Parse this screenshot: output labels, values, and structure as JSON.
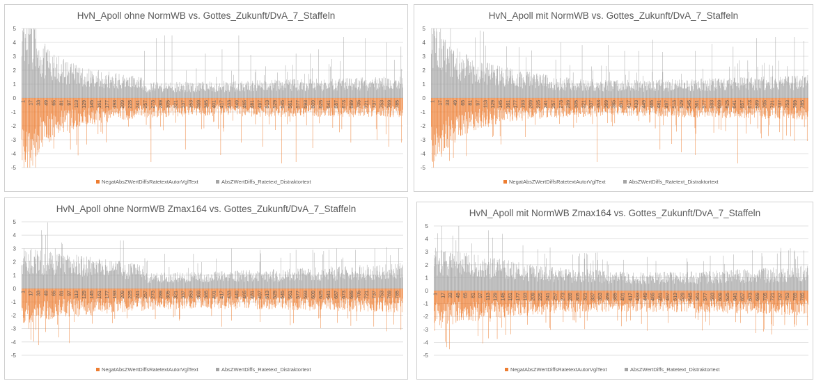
{
  "colors": {
    "neg": "#ED7D31",
    "pos": "#A5A5A5",
    "grid": "#D9D9D9",
    "text": "#595959"
  },
  "chart_data": [
    {
      "type": "bar",
      "title": "HvN_Apoll ohne NormWB vs. Gottes_Zukunft/DvA_7_Staffeln",
      "ylim": [
        -5,
        5
      ],
      "yticks": [
        5,
        4,
        3,
        2,
        1,
        0,
        -1,
        -2,
        -3,
        -4,
        -5
      ],
      "xticks": [
        "1",
        "17",
        "33",
        "49",
        "65",
        "81",
        "97",
        "113",
        "129",
        "145",
        "161",
        "177",
        "193",
        "209",
        "225",
        "241",
        "257",
        "273",
        "289",
        "305",
        "321",
        "337",
        "353",
        "369",
        "385",
        "401",
        "417",
        "433",
        "449",
        "465",
        "481",
        "497",
        "513",
        "529",
        "545",
        "561",
        "577",
        "593",
        "609",
        "625",
        "641",
        "657",
        "673",
        "689",
        "705",
        "721",
        "737",
        "753",
        "769",
        "785"
      ],
      "n": 800,
      "legend_position": "bottom",
      "series": [
        {
          "name": "NegatAbsZWertDiffsRatetextAutorVglText",
          "color": "#ED7D31",
          "profile": [
            [
              0,
              -4.6
            ],
            [
              16,
              -4.6
            ],
            [
              40,
              -2.8
            ],
            [
              80,
              -2.0
            ],
            [
              150,
              -1.5
            ],
            [
              250,
              -1.1
            ],
            [
              400,
              -1.0
            ],
            [
              550,
              -1.05
            ],
            [
              650,
              -1.05
            ],
            [
              800,
              -1.1
            ]
          ],
          "spikes": [
            [
              8,
              -4.6
            ],
            [
              20,
              -4.5
            ],
            [
              30,
              -4.2
            ],
            [
              44,
              -3.5
            ],
            [
              69,
              -2.8
            ],
            [
              100,
              -2.5
            ],
            [
              160,
              -2.6
            ],
            [
              271,
              -4.6
            ],
            [
              343,
              -3.7
            ],
            [
              417,
              -4.1
            ],
            [
              460,
              -3.2
            ],
            [
              505,
              -3.5
            ],
            [
              545,
              -4.7
            ],
            [
              575,
              -4.6
            ],
            [
              610,
              -3.6
            ],
            [
              690,
              -3.2
            ],
            [
              745,
              -3.0
            ],
            [
              770,
              -3.5
            ],
            [
              796,
              -3.2
            ]
          ]
        },
        {
          "name": "AbsZWertDiffs_Ratetext_Distraktortext",
          "color": "#A5A5A5",
          "profile": [
            [
              0,
              4.6
            ],
            [
              18,
              4.6
            ],
            [
              35,
              3.6
            ],
            [
              60,
              2.6
            ],
            [
              100,
              2.0
            ],
            [
              150,
              1.6
            ],
            [
              200,
              1.4
            ],
            [
              255,
              1.2
            ],
            [
              260,
              0.9
            ],
            [
              350,
              0.9
            ],
            [
              500,
              1.0
            ],
            [
              650,
              1.1
            ],
            [
              800,
              1.2
            ]
          ],
          "spikes": [
            [
              8,
              4.6
            ],
            [
              18,
              4.6
            ],
            [
              257,
              3.4
            ],
            [
              282,
              4.3
            ],
            [
              300,
              4.5
            ],
            [
              315,
              4.5
            ],
            [
              385,
              3.2
            ],
            [
              420,
              3.5
            ],
            [
              455,
              4.5
            ],
            [
              480,
              3.1
            ],
            [
              575,
              3.2
            ],
            [
              605,
              3.2
            ],
            [
              622,
              3.5
            ],
            [
              650,
              2.8
            ],
            [
              675,
              4.4
            ],
            [
              720,
              4.3
            ],
            [
              765,
              4.0
            ],
            [
              795,
              3.7
            ]
          ]
        }
      ]
    },
    {
      "type": "bar",
      "title": "HvN_Apoll mit NormWB vs. Gottes_Zukunft/DvA_7_Staffeln",
      "ylim": [
        -5,
        5
      ],
      "yticks": [
        5,
        4,
        3,
        2,
        1,
        0,
        -1,
        -2,
        -3,
        -4,
        -5
      ],
      "xticks": [
        "1",
        "17",
        "33",
        "49",
        "65",
        "81",
        "97",
        "113",
        "129",
        "145",
        "161",
        "177",
        "193",
        "209",
        "225",
        "241",
        "257",
        "273",
        "289",
        "305",
        "321",
        "337",
        "353",
        "369",
        "385",
        "401",
        "417",
        "433",
        "449",
        "465",
        "481",
        "497",
        "513",
        "529",
        "545",
        "561",
        "577",
        "593",
        "609",
        "625",
        "641",
        "657",
        "673",
        "689",
        "705",
        "721",
        "737",
        "753",
        "769",
        "785"
      ],
      "n": 800,
      "legend_position": "bottom",
      "series": [
        {
          "name": "NegatAbsZWertDiffsRatetextAutorVglText",
          "color": "#ED7D31",
          "profile": [
            [
              0,
              -4.4
            ],
            [
              12,
              -4.0
            ],
            [
              40,
              -2.6
            ],
            [
              80,
              -1.9
            ],
            [
              150,
              -1.4
            ],
            [
              250,
              -1.1
            ],
            [
              400,
              -1.0
            ],
            [
              600,
              -1.1
            ],
            [
              800,
              -1.2
            ]
          ],
          "spikes": [
            [
              3,
              -4.6
            ],
            [
              10,
              -4.2
            ],
            [
              25,
              -3.8
            ],
            [
              50,
              -3.2
            ],
            [
              130,
              -2.8
            ],
            [
              352,
              -4.6
            ],
            [
              485,
              -3.7
            ],
            [
              510,
              -3.3
            ],
            [
              530,
              -3.9
            ],
            [
              560,
              -4.1
            ],
            [
              650,
              -4.7
            ],
            [
              700,
              -2.9
            ],
            [
              745,
              -3.0
            ],
            [
              770,
              -3.1
            ],
            [
              797,
              -3.1
            ]
          ]
        },
        {
          "name": "AbsZWertDiffs_Ratetext_Distraktortext",
          "color": "#A5A5A5",
          "profile": [
            [
              0,
              4.6
            ],
            [
              10,
              4.5
            ],
            [
              35,
              3.3
            ],
            [
              60,
              2.7
            ],
            [
              100,
              2.1
            ],
            [
              160,
              1.7
            ],
            [
              220,
              1.4
            ],
            [
              300,
              1.1
            ],
            [
              450,
              1.0
            ],
            [
              600,
              1.1
            ],
            [
              800,
              1.3
            ]
          ],
          "spikes": [
            [
              3,
              4.6
            ],
            [
              10,
              4.3
            ],
            [
              275,
              4.0
            ],
            [
              320,
              3.8
            ],
            [
              375,
              3.8
            ],
            [
              410,
              3.4
            ],
            [
              440,
              3.4
            ],
            [
              470,
              4.2
            ],
            [
              490,
              3.3
            ],
            [
              560,
              3.4
            ],
            [
              595,
              3.9
            ],
            [
              640,
              3.7
            ],
            [
              690,
              4.3
            ],
            [
              730,
              4.4
            ],
            [
              770,
              4.4
            ],
            [
              790,
              4.1
            ]
          ]
        }
      ]
    },
    {
      "type": "bar",
      "title": "HvN_Apoll ohne NormWB Zmax164 vs. Gottes_Zukunft/DvA_7_Staffeln",
      "ylim": [
        -5,
        5
      ],
      "yticks": [
        5,
        4,
        3,
        2,
        1,
        0,
        -1,
        -2,
        -3,
        -4,
        -5
      ],
      "xticks": [
        "1",
        "17",
        "33",
        "49",
        "65",
        "81",
        "97",
        "113",
        "129",
        "145",
        "161",
        "177",
        "193",
        "209",
        "225",
        "241",
        "257",
        "273",
        "289",
        "305",
        "321",
        "337",
        "353",
        "369",
        "385",
        "401",
        "417",
        "433",
        "449",
        "465",
        "481",
        "497",
        "513",
        "529",
        "545",
        "561",
        "577",
        "593",
        "609",
        "625",
        "641",
        "657",
        "673",
        "689",
        "705",
        "721",
        "737",
        "753",
        "769",
        "785"
      ],
      "n": 800,
      "legend_position": "bottom",
      "series": [
        {
          "name": "NegatAbsZWertDiffsRatetextAutorVglText",
          "color": "#ED7D31",
          "profile": [
            [
              0,
              -2.0
            ],
            [
              40,
              -1.9
            ],
            [
              100,
              -1.7
            ],
            [
              200,
              -1.4
            ],
            [
              300,
              -1.2
            ],
            [
              500,
              -1.2
            ],
            [
              650,
              -1.3
            ],
            [
              800,
              -1.4
            ]
          ],
          "spikes": [
            [
              15,
              -3.0
            ],
            [
              30,
              -3.1
            ],
            [
              75,
              -2.7
            ],
            [
              110,
              -2.5
            ],
            [
              190,
              -2.6
            ],
            [
              330,
              -2.4
            ],
            [
              440,
              -2.4
            ],
            [
              500,
              -2.5
            ],
            [
              570,
              -2.6
            ],
            [
              625,
              -2.2
            ],
            [
              690,
              -2.8
            ],
            [
              765,
              -3.2
            ],
            [
              795,
              -3.1
            ]
          ]
        },
        {
          "name": "AbsZWertDiffs_Ratetext_Distraktortext",
          "color": "#A5A5A5",
          "profile": [
            [
              0,
              2.4
            ],
            [
              50,
              2.2
            ],
            [
              100,
              2.0
            ],
            [
              180,
              1.7
            ],
            [
              255,
              1.4
            ],
            [
              262,
              0.9
            ],
            [
              400,
              1.0
            ],
            [
              600,
              1.2
            ],
            [
              800,
              1.5
            ]
          ],
          "spikes": [
            [
              5,
              3.0
            ],
            [
              70,
              3.0
            ],
            [
              300,
              2.6
            ],
            [
              360,
              2.6
            ],
            [
              440,
              3.0
            ],
            [
              500,
              2.9
            ],
            [
              575,
              2.9
            ],
            [
              610,
              2.9
            ],
            [
              660,
              3.0
            ],
            [
              700,
              2.9
            ],
            [
              740,
              3.0
            ],
            [
              765,
              3.1
            ],
            [
              790,
              3.0
            ]
          ]
        }
      ]
    },
    {
      "type": "bar",
      "title": "HvN_Apoll mit NormWB Zmax164 vs. Gottes_Zukunft/DvA_7_Staffeln",
      "ylim": [
        -5,
        5
      ],
      "yticks": [
        5,
        4,
        3,
        2,
        1,
        0,
        -1,
        -2,
        -3,
        -4,
        -5
      ],
      "xticks": [
        "1",
        "17",
        "33",
        "49",
        "65",
        "81",
        "97",
        "113",
        "129",
        "145",
        "161",
        "177",
        "193",
        "209",
        "225",
        "241",
        "257",
        "273",
        "289",
        "305",
        "321",
        "337",
        "353",
        "369",
        "385",
        "401",
        "417",
        "433",
        "449",
        "465",
        "481",
        "497",
        "513",
        "529",
        "545",
        "561",
        "577",
        "593",
        "609",
        "625",
        "641",
        "657",
        "673",
        "689",
        "705",
        "721",
        "737",
        "753",
        "769",
        "785"
      ],
      "n": 800,
      "legend_position": "bottom",
      "series": [
        {
          "name": "NegatAbsZWertDiffsRatetextAutorVglText",
          "color": "#ED7D31",
          "profile": [
            [
              0,
              -2.1
            ],
            [
              60,
              -1.9
            ],
            [
              150,
              -1.6
            ],
            [
              300,
              -1.3
            ],
            [
              500,
              -1.3
            ],
            [
              700,
              -1.4
            ],
            [
              800,
              -1.5
            ]
          ],
          "spikes": [
            [
              2,
              -3.1
            ],
            [
              15,
              -2.9
            ],
            [
              40,
              -2.6
            ],
            [
              120,
              -2.4
            ],
            [
              300,
              -2.3
            ],
            [
              420,
              -2.3
            ],
            [
              500,
              -2.5
            ],
            [
              580,
              -2.4
            ],
            [
              655,
              -2.5
            ],
            [
              720,
              -2.6
            ],
            [
              770,
              -2.8
            ],
            [
              797,
              -2.7
            ]
          ]
        },
        {
          "name": "AbsZWertDiffs_Ratetext_Distraktortext",
          "color": "#A5A5A5",
          "profile": [
            [
              0,
              2.5
            ],
            [
              60,
              2.3
            ],
            [
              120,
              2.0
            ],
            [
              200,
              1.6
            ],
            [
              300,
              1.3
            ],
            [
              450,
              1.1
            ],
            [
              600,
              1.2
            ],
            [
              800,
              1.5
            ]
          ],
          "spikes": [
            [
              3,
              3.3
            ],
            [
              20,
              3.0
            ],
            [
              50,
              3.0
            ],
            [
              240,
              2.5
            ],
            [
              360,
              2.4
            ],
            [
              455,
              2.6
            ],
            [
              540,
              2.5
            ],
            [
              590,
              2.7
            ],
            [
              640,
              2.8
            ],
            [
              700,
              2.9
            ],
            [
              740,
              3.0
            ],
            [
              770,
              3.1
            ],
            [
              790,
              3.1
            ]
          ]
        }
      ]
    }
  ]
}
